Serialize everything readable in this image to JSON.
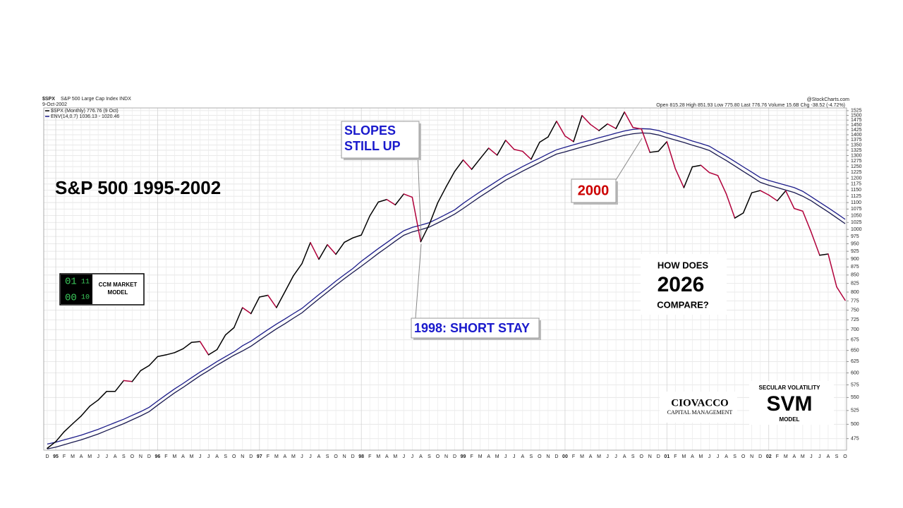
{
  "chart_data": {
    "type": "line",
    "ticker": "$SPX",
    "index_name": "S&P 500 Large Cap Index INDX",
    "date": "9-Oct-2002",
    "quote": "Open 815.28 High 851.93 Low 775.80 Last 776.76 Volume 15.6B Chg -38.52 (-4.72%)",
    "source": "@StockCharts.com",
    "title": "S&P 500 1995-2002",
    "log_scale": true,
    "grid": true,
    "annotations": {
      "slopes_1": "SLOPES",
      "slopes_2": "STILL UP",
      "short_stay": "1998: SHORT STAY",
      "peak": "2000",
      "how_1": "HOW DOES",
      "how_2": "2026",
      "how_3": "COMPARE?"
    },
    "logos": {
      "ccm_digits": [
        "01",
        "11",
        "00",
        "10"
      ],
      "ccm_1": "CCM MARKET",
      "ccm_2": "MODEL",
      "ciovacco_1": "CIOVACCO",
      "ciovacco_2": "CAPITAL MANAGEMENT",
      "svm_1": "SECULAR VOLATILITY",
      "svm_2": "SVM",
      "svm_3": "MODEL"
    },
    "categories": [
      "D",
      "95",
      "F",
      "M",
      "A",
      "M",
      "J",
      "J",
      "A",
      "S",
      "O",
      "N",
      "D",
      "96",
      "F",
      "M",
      "A",
      "M",
      "J",
      "J",
      "A",
      "S",
      "O",
      "N",
      "D",
      "97",
      "F",
      "M",
      "A",
      "M",
      "J",
      "J",
      "A",
      "S",
      "O",
      "N",
      "D",
      "98",
      "F",
      "M",
      "A",
      "M",
      "J",
      "J",
      "A",
      "S",
      "O",
      "N",
      "D",
      "99",
      "F",
      "M",
      "A",
      "M",
      "J",
      "J",
      "A",
      "S",
      "O",
      "N",
      "D",
      "00",
      "F",
      "M",
      "A",
      "M",
      "J",
      "J",
      "A",
      "S",
      "O",
      "N",
      "D",
      "01",
      "F",
      "M",
      "A",
      "M",
      "J",
      "J",
      "A",
      "S",
      "O",
      "N",
      "D",
      "02",
      "F",
      "M",
      "A",
      "M",
      "J",
      "J",
      "A",
      "S",
      "O"
    ],
    "series": [
      {
        "name": "$SPX (Monthly) 776.76 (9 Oct)",
        "up_color": "#000000",
        "down_color": "#b0003a",
        "values": [
          459,
          470,
          487,
          501,
          515,
          533,
          545,
          562,
          562,
          584,
          582,
          605,
          616,
          636,
          640,
          645,
          654,
          669,
          671,
          640,
          652,
          687,
          705,
          757,
          741,
          786,
          791,
          757,
          801,
          848,
          885,
          954,
          899,
          947,
          915,
          955,
          970,
          980,
          1049,
          1102,
          1112,
          1091,
          1134,
          1121,
          957,
          1017,
          1099,
          1164,
          1229,
          1280,
          1238,
          1286,
          1335,
          1302,
          1373,
          1329,
          1320,
          1283,
          1363,
          1389,
          1469,
          1394,
          1366,
          1499,
          1452,
          1421,
          1455,
          1431,
          1518,
          1437,
          1429,
          1315,
          1320,
          1366,
          1240,
          1160,
          1249,
          1256,
          1224,
          1211,
          1134,
          1041,
          1060,
          1139,
          1148,
          1130,
          1107,
          1147,
          1077,
          1067,
          990,
          912,
          916,
          815,
          777
        ]
      },
      {
        "name": "ENV(14,0.7) 1036.13 - 1020.46",
        "color": "#1c1c8a",
        "lower_color": "#1a1a50",
        "upper": [
          466,
          469,
          473,
          477,
          481,
          486,
          491,
          497,
          503,
          509,
          516,
          523,
          531,
          543,
          555,
          567,
          578,
          590,
          602,
          613,
          625,
          636,
          647,
          661,
          672,
          686,
          700,
          714,
          727,
          741,
          755,
          774,
          793,
          812,
          832,
          851,
          870,
          893,
          913,
          934,
          954,
          975,
          995,
          1007,
          1015,
          1024,
          1039,
          1055,
          1072,
          1097,
          1120,
          1143,
          1165,
          1188,
          1211,
          1230,
          1250,
          1269,
          1288,
          1308,
          1327,
          1339,
          1351,
          1362,
          1373,
          1385,
          1396,
          1408,
          1419,
          1427,
          1431,
          1429,
          1421,
          1408,
          1396,
          1383,
          1369,
          1357,
          1344,
          1320,
          1297,
          1273,
          1249,
          1226,
          1202,
          1190,
          1180,
          1170,
          1160,
          1145,
          1123,
          1101,
          1080,
          1058,
          1036.13
        ],
        "lower": [
          458,
          461,
          465,
          469,
          473,
          478,
          483,
          489,
          495,
          501,
          508,
          515,
          523,
          535,
          547,
          559,
          570,
          582,
          594,
          605,
          617,
          628,
          639,
          649,
          660,
          674,
          688,
          702,
          715,
          729,
          743,
          762,
          781,
          800,
          820,
          839,
          858,
          877,
          897,
          918,
          938,
          959,
          979,
          991,
          999,
          1008,
          1023,
          1039,
          1056,
          1077,
          1100,
          1123,
          1145,
          1168,
          1191,
          1210,
          1230,
          1249,
          1268,
          1288,
          1307,
          1317,
          1329,
          1340,
          1351,
          1363,
          1374,
          1386,
          1397,
          1405,
          1409,
          1407,
          1399,
          1386,
          1374,
          1362,
          1349,
          1337,
          1324,
          1300,
          1277,
          1253,
          1229,
          1206,
          1182,
          1170,
          1160,
          1150,
          1140,
          1125,
          1107,
          1085,
          1064,
          1042,
          1020.46
        ]
      }
    ],
    "ylim": [
      456,
      1540
    ],
    "yticks": [
      475,
      500,
      525,
      550,
      575,
      600,
      625,
      650,
      675,
      700,
      725,
      750,
      775,
      800,
      825,
      850,
      875,
      900,
      925,
      950,
      975,
      1000,
      1025,
      1050,
      1075,
      1100,
      1125,
      1150,
      1175,
      1200,
      1225,
      1250,
      1275,
      1300,
      1325,
      1350,
      1375,
      1400,
      1425,
      1450,
      1475,
      1500,
      1525
    ]
  }
}
